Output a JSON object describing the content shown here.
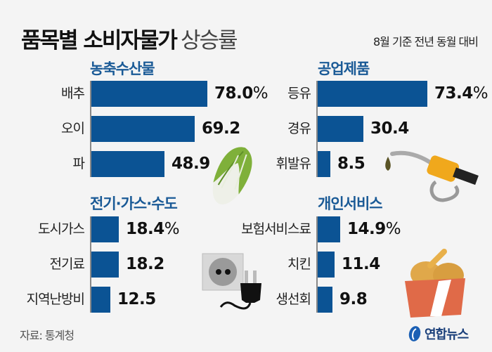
{
  "header": {
    "title_bold": "품목별 소비자물가",
    "title_light": "상승률",
    "subtitle": "8월 기준 전년 동월 대비"
  },
  "footer": {
    "source": "자료: 통계청",
    "logo_text": "연합뉴스"
  },
  "colors": {
    "bar": "#0b5394",
    "section_title": "#1a5a96",
    "background": "#f4f4f4"
  },
  "unit_suffix": "%",
  "chart_data": [
    {
      "type": "bar",
      "orientation": "horizontal",
      "title": "농축수산물",
      "categories": [
        "배추",
        "오이",
        "파"
      ],
      "values": [
        78.0,
        69.2,
        48.9
      ],
      "value_labels": [
        "78.0",
        "69.2",
        "48.9"
      ],
      "unit": "%",
      "xlim": [
        0,
        80
      ]
    },
    {
      "type": "bar",
      "orientation": "horizontal",
      "title": "공업제품",
      "categories": [
        "등유",
        "경유",
        "휘발유"
      ],
      "values": [
        73.4,
        30.4,
        8.5
      ],
      "value_labels": [
        "73.4",
        "30.4",
        "8.5"
      ],
      "unit": "%",
      "xlim": [
        0,
        80
      ]
    },
    {
      "type": "bar",
      "orientation": "horizontal",
      "title": "전기·가스·수도",
      "categories": [
        "도시가스",
        "전기료",
        "지역난방비"
      ],
      "values": [
        18.4,
        18.2,
        12.5
      ],
      "value_labels": [
        "18.4",
        "18.2",
        "12.5"
      ],
      "unit": "%",
      "xlim": [
        0,
        80
      ]
    },
    {
      "type": "bar",
      "orientation": "horizontal",
      "title": "개인서비스",
      "categories": [
        "보험서비스료",
        "치킨",
        "생선회"
      ],
      "values": [
        14.9,
        11.4,
        9.8
      ],
      "value_labels": [
        "14.9",
        "11.4",
        "9.8"
      ],
      "unit": "%",
      "xlim": [
        0,
        80
      ]
    }
  ],
  "illustrations": [
    "napa-cabbage",
    "fuel-nozzle",
    "power-outlet-plug",
    "fried-chicken-box"
  ]
}
